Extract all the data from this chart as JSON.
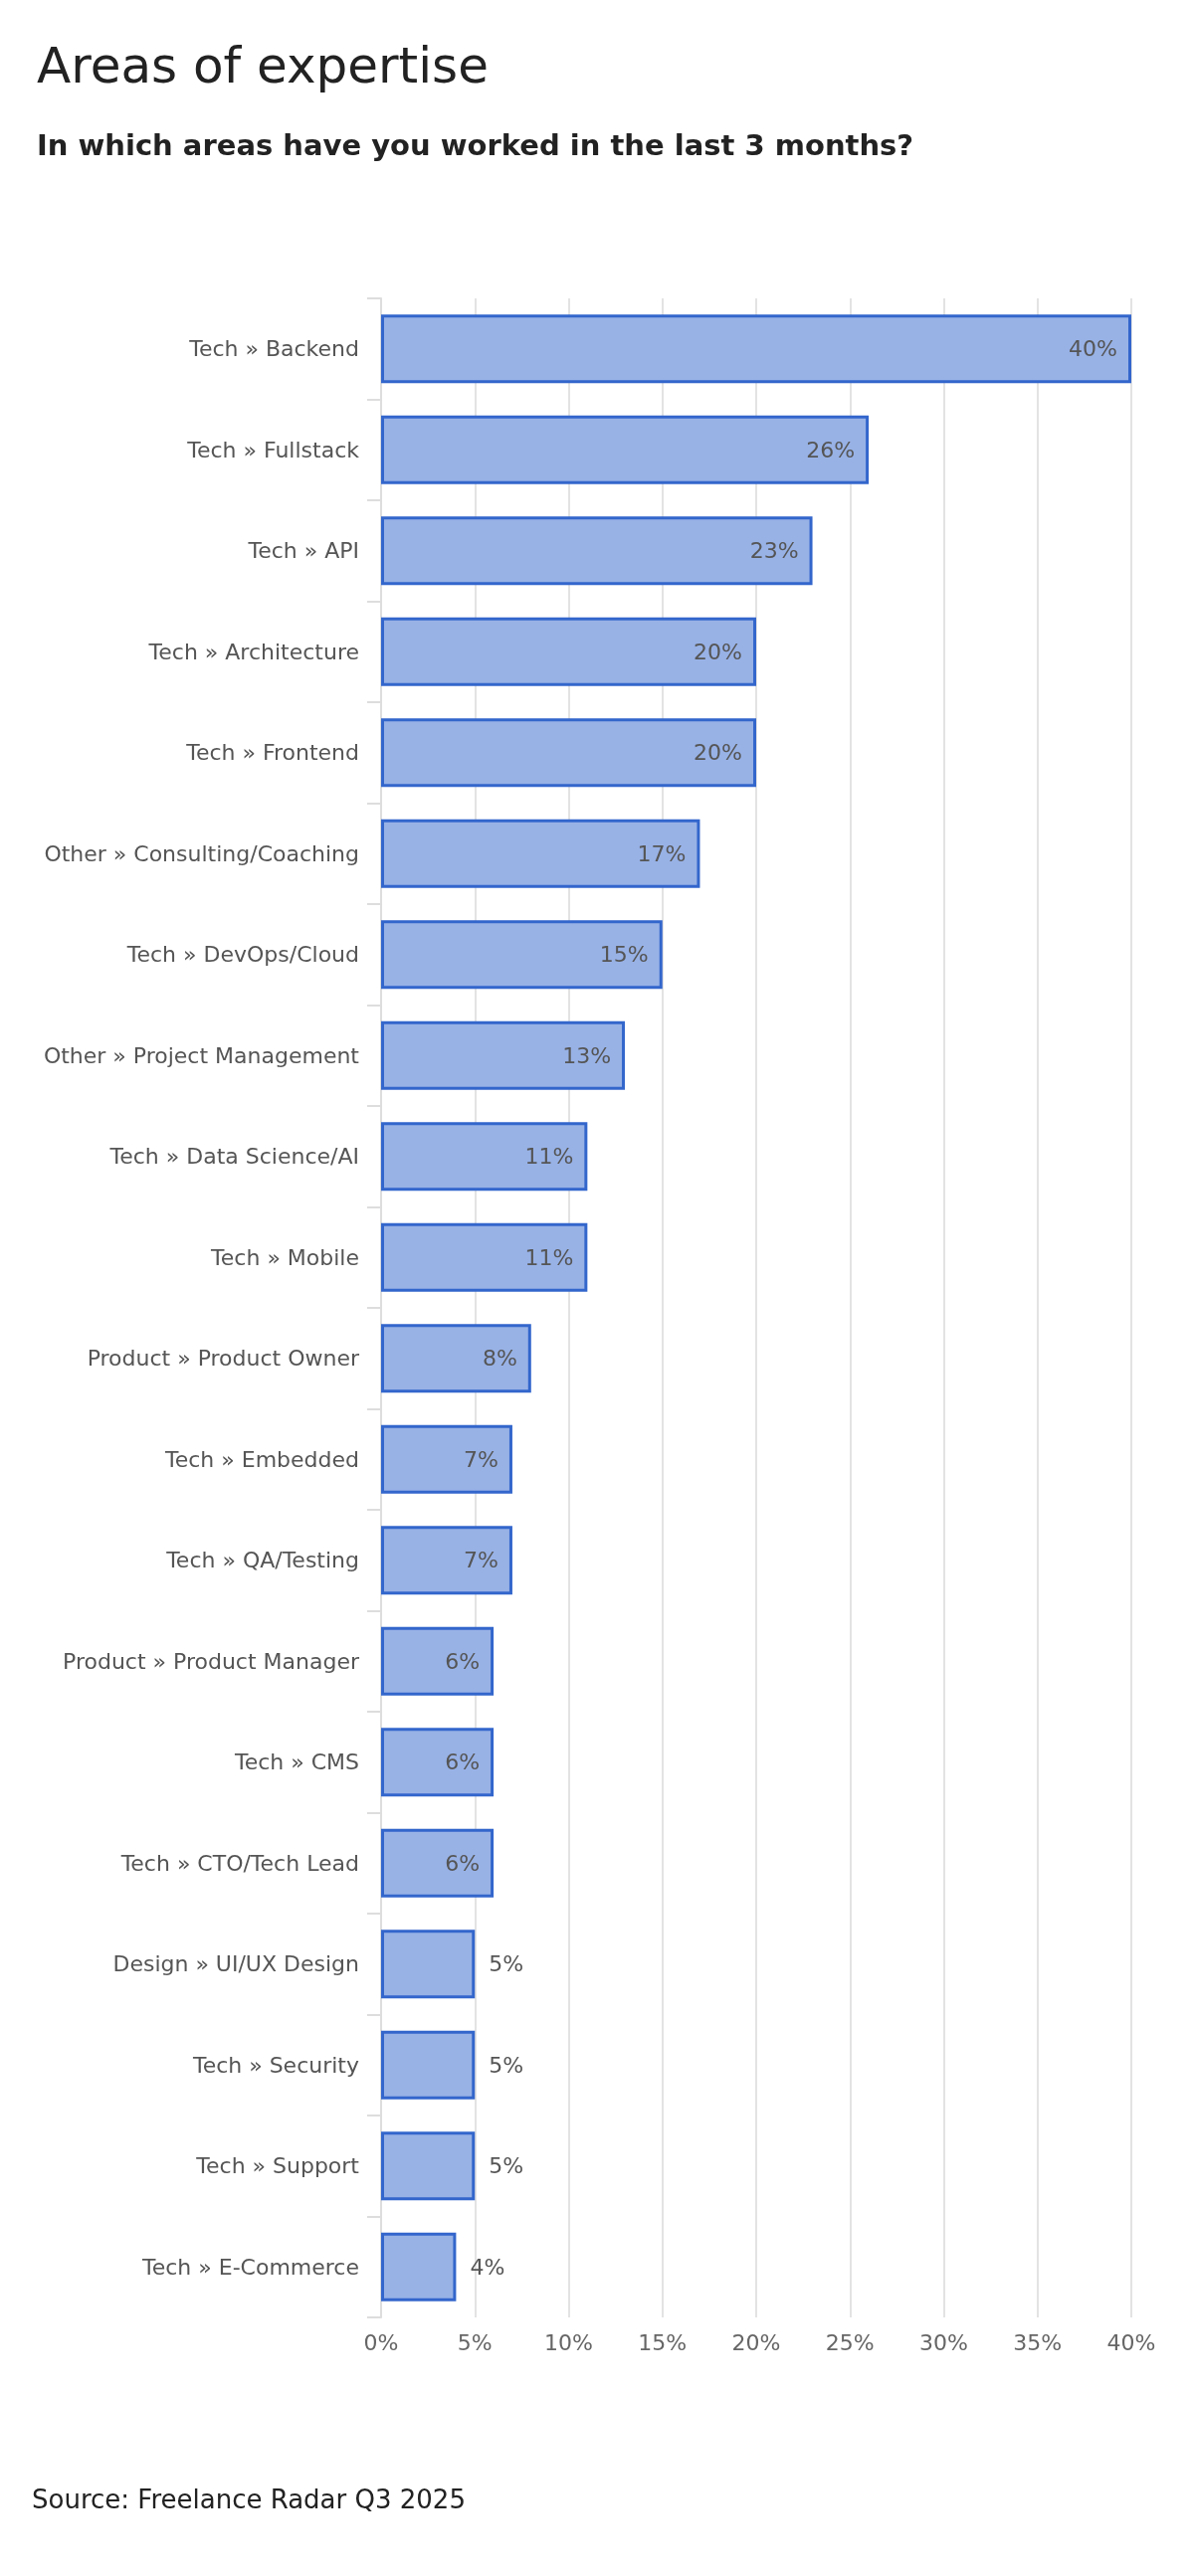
{
  "chart_data": {
    "type": "bar",
    "orientation": "horizontal",
    "title": "Areas of expertise",
    "subtitle": "In which areas have you worked in the last 3 months?",
    "categories": [
      "Tech » Backend",
      "Tech » Fullstack",
      "Tech » API",
      "Tech » Architecture",
      "Tech » Frontend",
      "Other » Consulting/Coaching",
      "Tech » DevOps/Cloud",
      "Other » Project Management",
      "Tech » Data Science/AI",
      "Tech » Mobile",
      "Product » Product Owner",
      "Tech » Embedded",
      "Tech » QA/Testing",
      "Product » Product Manager",
      "Tech » CMS",
      "Tech » CTO/Tech Lead",
      "Design » UI/UX Design",
      "Tech » Security",
      "Tech » Support",
      "Tech » E-Commerce"
    ],
    "values": [
      40,
      26,
      23,
      20,
      20,
      17,
      15,
      13,
      11,
      11,
      8,
      7,
      7,
      6,
      6,
      6,
      5,
      5,
      5,
      4
    ],
    "value_labels": [
      "40%",
      "26%",
      "23%",
      "20%",
      "20%",
      "17%",
      "15%",
      "13%",
      "11%",
      "11%",
      "8%",
      "7%",
      "7%",
      "6%",
      "6%",
      "6%",
      "5%",
      "5%",
      "5%",
      "4%"
    ],
    "color": "#98b2e6",
    "xlim": [
      0,
      40
    ],
    "xticks": [
      {
        "value": 0,
        "label": "0%"
      },
      {
        "value": 5,
        "label": "5%"
      },
      {
        "value": 10,
        "label": "10%"
      },
      {
        "value": 15,
        "label": "15%"
      },
      {
        "value": 20,
        "label": "20%"
      },
      {
        "value": 25,
        "label": "25%"
      },
      {
        "value": 30,
        "label": "30%"
      },
      {
        "value": 35,
        "label": "35%"
      },
      {
        "value": 40,
        "label": "40%"
      }
    ],
    "grid": "x",
    "annotations": [
      "Source: Freelance Radar Q3 2025"
    ]
  }
}
